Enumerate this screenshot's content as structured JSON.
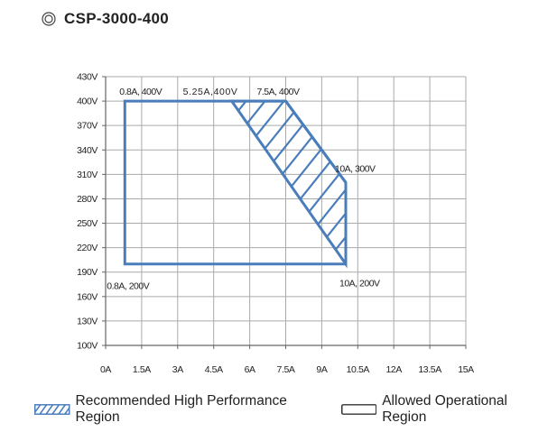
{
  "title": "CSP-3000-400",
  "icon": "double-circle-icon",
  "colors": {
    "region_line": "#4a7ebb",
    "hatch": "#4a7ebb",
    "grid": "#aaaaaa",
    "axis": "#666666",
    "text": "#222222"
  },
  "legend": {
    "recommended": "Recommended High Performance Region",
    "allowed": "Allowed Operational Region"
  },
  "chart_data": {
    "type": "area",
    "x_ticks": [
      "0A",
      "1.5A",
      "3A",
      "4.5A",
      "6A",
      "7.5A",
      "9A",
      "10.5A",
      "12A",
      "13.5A",
      "15A"
    ],
    "y_ticks": [
      "100V",
      "130V",
      "160V",
      "190V",
      "220V",
      "250V",
      "280V",
      "310V",
      "340V",
      "370V",
      "400V",
      "430V"
    ],
    "xlim": [
      0,
      15
    ],
    "ylim": [
      100,
      430
    ],
    "grid": true,
    "series": [
      {
        "name": "Allowed Operational Region",
        "style": "outline",
        "points": [
          [
            0.8,
            200
          ],
          [
            0.8,
            400
          ],
          [
            7.5,
            400
          ],
          [
            10,
            300
          ],
          [
            10,
            200
          ]
        ]
      },
      {
        "name": "Recommended High Performance Region",
        "style": "hatched",
        "points": [
          [
            5.25,
            400
          ],
          [
            7.5,
            400
          ],
          [
            10,
            300
          ],
          [
            10,
            200
          ]
        ]
      }
    ],
    "annotations": [
      {
        "text": "0.8A, 400V",
        "x": 0.8,
        "y": 400
      },
      {
        "text": "5.25A,400V",
        "x": 5.25,
        "y": 400
      },
      {
        "text": "7.5A, 400V",
        "x": 7.5,
        "y": 400
      },
      {
        "text": "10A, 300V",
        "x": 10,
        "y": 300
      },
      {
        "text": "0.8A, 200V",
        "x": 0.8,
        "y": 200
      },
      {
        "text": "10A, 200V",
        "x": 10,
        "y": 200
      }
    ]
  }
}
